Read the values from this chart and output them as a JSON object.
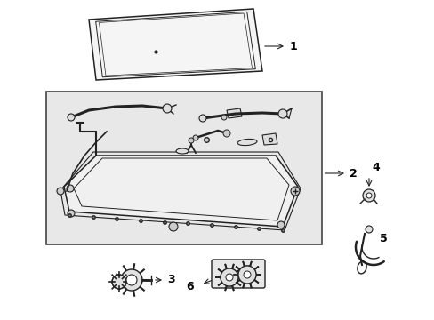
{
  "bg_color": "#ffffff",
  "fig_width": 4.89,
  "fig_height": 3.6,
  "box_color": "#e8e8e8",
  "box_edge": "#444444",
  "line_color": "#222222",
  "label_fontsize": 9
}
